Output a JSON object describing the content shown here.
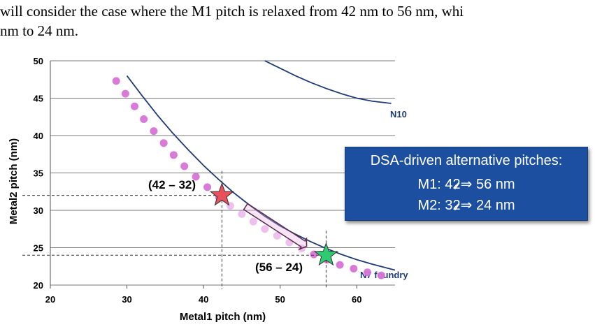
{
  "body_text": {
    "line1": "will consider the case where the M1 pitch is relaxed from 42 nm to 56 nm, whi",
    "line2": "nm to 24 nm."
  },
  "chart_data": {
    "type": "scatter",
    "xlabel": "Metal1 pitch (nm)",
    "ylabel": "Metal2 pitch (nm)",
    "xlim": [
      20,
      65
    ],
    "ylim": [
      20,
      50
    ],
    "xticks": [
      20,
      30,
      40,
      50,
      60
    ],
    "yticks": [
      20,
      25,
      30,
      35,
      40,
      45,
      50
    ],
    "grid": "horizontal",
    "curves": [
      {
        "name": "N10",
        "x": [
          48,
          50,
          52,
          54,
          56,
          58,
          60,
          62,
          64.5
        ],
        "y": [
          50,
          49.0,
          48.0,
          47.1,
          46.3,
          45.6,
          45.0,
          44.6,
          44.3
        ]
      },
      {
        "name": "N7 foundry",
        "x": [
          30,
          32,
          34,
          36,
          38,
          40,
          42,
          44,
          46,
          48,
          50,
          52,
          54,
          56,
          58,
          60,
          62,
          65
        ],
        "y": [
          48,
          45.3,
          42.7,
          40.3,
          38.1,
          36.0,
          34.1,
          32.3,
          30.7,
          29.2,
          27.9,
          26.8,
          25.8,
          24.9,
          24.1,
          23.4,
          22.8,
          22.0
        ]
      }
    ],
    "dots": {
      "x": [
        28.6,
        29.8,
        31.0,
        32.2,
        33.5,
        34.8,
        36.1,
        37.5,
        39.0,
        40.5,
        42.0,
        43.5,
        45.0,
        46.5,
        48.0,
        49.6,
        51.2,
        52.8,
        54.4,
        56.1,
        57.8,
        59.6,
        61.4,
        63.2
      ],
      "y": [
        47.3,
        45.6,
        43.9,
        42.2,
        40.6,
        39.0,
        37.4,
        35.9,
        34.5,
        33.1,
        31.8,
        30.6,
        29.5,
        28.5,
        27.5,
        26.6,
        25.7,
        24.9,
        24.1,
        23.4,
        22.7,
        22.2,
        21.7,
        21.3
      ],
      "color": "#d873d6"
    },
    "points": [
      {
        "label": "(42 – 32)",
        "x": 42.4,
        "y": 32,
        "color": "#e8505b"
      },
      {
        "label": "(56 – 24)",
        "x": 56,
        "y": 24,
        "color": "#2ecc71"
      }
    ],
    "curve_color": "#1f3a7a",
    "callout": {
      "title": "DSA-driven alternative pitches:",
      "m1_prefix": "M1:  4",
      "m1_struck": "2",
      "m1_suffix": "⇒ 56 nm",
      "m2_prefix": "M2:  3",
      "m2_struck": "2",
      "m2_suffix": "⇒ 24 nm"
    }
  }
}
